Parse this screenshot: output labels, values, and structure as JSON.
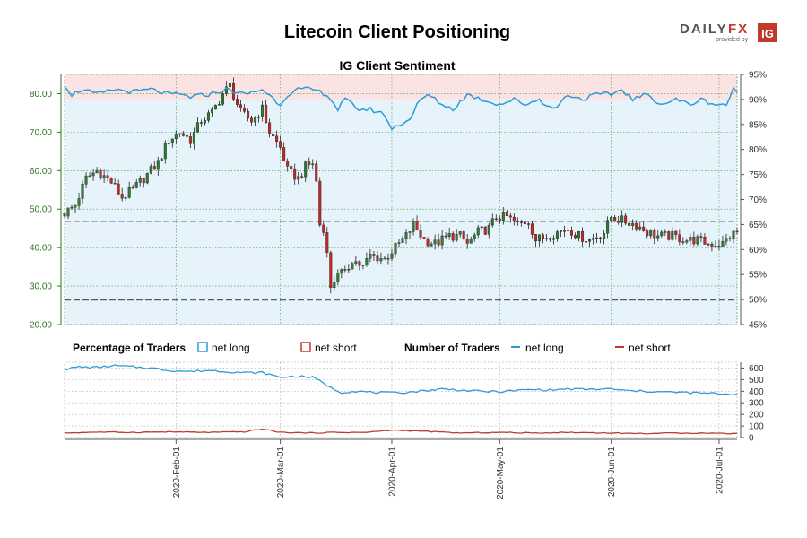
{
  "title": "Litecoin Client Positioning",
  "subtitle": "IG Client Sentiment",
  "logo": {
    "text_left": "DAILY",
    "text_right": "FX",
    "tagline": "provided by",
    "badge": "IG"
  },
  "legend": {
    "pct_title": "Percentage of Traders",
    "pct_long": "net long",
    "pct_short": "net short",
    "num_title": "Number of Traders",
    "num_long": "net long",
    "num_short": "net short"
  },
  "colors": {
    "up_candle": "#2e7d32",
    "down_candle": "#c62828",
    "long_line": "#2e9bd6",
    "short_line": "#c0392b",
    "long_zone": "#e6f3fb",
    "short_zone": "#fbe3e3",
    "price_axis": "#2a7a1e"
  },
  "chart_data": [
    {
      "type": "candlestick",
      "name": "price",
      "y_ticks": [
        "20.00",
        "30.00",
        "40.00",
        "50.00",
        "60.00",
        "70.00",
        "80.00"
      ],
      "ylim": [
        20,
        85
      ],
      "x_ticks": [
        "2020-Feb-01",
        "2020-Mar-01",
        "2020-Apr-01",
        "2020-May-01",
        "2020-Jun-01",
        "2020-Jul-01"
      ],
      "first_date": "2020-01-01",
      "last_date": "2020-07-06",
      "reference_lines": [
        46.7,
        26.4
      ],
      "close_anchors": [
        [
          "2020-01-01",
          49.0
        ],
        [
          "2020-01-04",
          51.0
        ],
        [
          "2020-01-07",
          58.0
        ],
        [
          "2020-01-10",
          60.0
        ],
        [
          "2020-01-14",
          57.0
        ],
        [
          "2020-01-17",
          53.0
        ],
        [
          "2020-01-20",
          55.0
        ],
        [
          "2020-01-24",
          59.0
        ],
        [
          "2020-01-27",
          62.0
        ],
        [
          "2020-01-30",
          68.0
        ],
        [
          "2020-02-02",
          70.0
        ],
        [
          "2020-02-05",
          68.0
        ],
        [
          "2020-02-08",
          73.0
        ],
        [
          "2020-02-11",
          75.0
        ],
        [
          "2020-02-14",
          80.0
        ],
        [
          "2020-02-16",
          82.0
        ],
        [
          "2020-02-19",
          75.0
        ],
        [
          "2020-02-22",
          73.0
        ],
        [
          "2020-02-25",
          76.0
        ],
        [
          "2020-02-27",
          70.0
        ],
        [
          "2020-03-01",
          66.0
        ],
        [
          "2020-03-03",
          60.0
        ],
        [
          "2020-03-06",
          58.0
        ],
        [
          "2020-03-08",
          61.0
        ],
        [
          "2020-03-10",
          62.0
        ],
        [
          "2020-03-11",
          57.0
        ],
        [
          "2020-03-12",
          46.0
        ],
        [
          "2020-03-13",
          44.0
        ],
        [
          "2020-03-14",
          40.0
        ],
        [
          "2020-03-15",
          29.0
        ],
        [
          "2020-03-17",
          34.0
        ],
        [
          "2020-03-19",
          33.0
        ],
        [
          "2020-03-21",
          37.0
        ],
        [
          "2020-03-24",
          35.0
        ],
        [
          "2020-03-26",
          38.0
        ],
        [
          "2020-03-30",
          37.0
        ],
        [
          "2020-04-02",
          40.0
        ],
        [
          "2020-04-05",
          43.0
        ],
        [
          "2020-04-07",
          46.0
        ],
        [
          "2020-04-10",
          42.0
        ],
        [
          "2020-04-13",
          41.0
        ],
        [
          "2020-04-17",
          43.0
        ],
        [
          "2020-04-20",
          43.0
        ],
        [
          "2020-04-22",
          41.0
        ],
        [
          "2020-04-25",
          44.0
        ],
        [
          "2020-04-28",
          45.0
        ],
        [
          "2020-04-30",
          48.0
        ],
        [
          "2020-05-03",
          48.0
        ],
        [
          "2020-05-06",
          46.0
        ],
        [
          "2020-05-09",
          47.0
        ],
        [
          "2020-05-11",
          42.0
        ],
        [
          "2020-05-14",
          43.0
        ],
        [
          "2020-05-17",
          44.0
        ],
        [
          "2020-05-20",
          45.0
        ],
        [
          "2020-05-23",
          43.0
        ],
        [
          "2020-05-26",
          42.0
        ],
        [
          "2020-05-30",
          44.0
        ],
        [
          "2020-06-01",
          48.0
        ],
        [
          "2020-06-04",
          47.0
        ],
        [
          "2020-06-08",
          46.0
        ],
        [
          "2020-06-11",
          44.0
        ],
        [
          "2020-06-14",
          43.0
        ],
        [
          "2020-06-18",
          43.0
        ],
        [
          "2020-06-22",
          42.0
        ],
        [
          "2020-06-25",
          42.0
        ],
        [
          "2020-06-28",
          41.0
        ],
        [
          "2020-07-02",
          41.0
        ],
        [
          "2020-07-04",
          43.0
        ],
        [
          "2020-07-06",
          44.0
        ]
      ],
      "sentiment_right_axis": {
        "ticks": [
          "45%",
          "50%",
          "55%",
          "60%",
          "65%",
          "70%",
          "75%",
          "80%",
          "85%",
          "90%",
          "95%"
        ],
        "ylim": [
          45,
          95
        ],
        "long_pct_anchors": [
          [
            "2020-01-01",
            93
          ],
          [
            "2020-01-03",
            91
          ],
          [
            "2020-01-06",
            92
          ],
          [
            "2020-01-10",
            91
          ],
          [
            "2020-01-15",
            92
          ],
          [
            "2020-01-20",
            91.5
          ],
          [
            "2020-01-25",
            92
          ],
          [
            "2020-01-30",
            91
          ],
          [
            "2020-02-02",
            91
          ],
          [
            "2020-02-05",
            90.5
          ],
          [
            "2020-02-10",
            91
          ],
          [
            "2020-02-15",
            92
          ],
          [
            "2020-02-20",
            91
          ],
          [
            "2020-02-25",
            92
          ],
          [
            "2020-03-01",
            89
          ],
          [
            "2020-03-03",
            91
          ],
          [
            "2020-03-06",
            92
          ],
          [
            "2020-03-10",
            92
          ],
          [
            "2020-03-14",
            91
          ],
          [
            "2020-03-17",
            88
          ],
          [
            "2020-03-19",
            90
          ],
          [
            "2020-03-23",
            88
          ],
          [
            "2020-03-26",
            88
          ],
          [
            "2020-03-30",
            87
          ],
          [
            "2020-04-01",
            84
          ],
          [
            "2020-04-03",
            85
          ],
          [
            "2020-04-06",
            86
          ],
          [
            "2020-04-08",
            89
          ],
          [
            "2020-04-11",
            91
          ],
          [
            "2020-04-15",
            89
          ],
          [
            "2020-04-18",
            88
          ],
          [
            "2020-04-22",
            91
          ],
          [
            "2020-04-26",
            90
          ],
          [
            "2020-05-01",
            89
          ],
          [
            "2020-05-05",
            90
          ],
          [
            "2020-05-08",
            89
          ],
          [
            "2020-05-12",
            90
          ],
          [
            "2020-05-16",
            88
          ],
          [
            "2020-05-20",
            91
          ],
          [
            "2020-05-24",
            90
          ],
          [
            "2020-05-28",
            91
          ],
          [
            "2020-06-01",
            91
          ],
          [
            "2020-06-04",
            92
          ],
          [
            "2020-06-07",
            90
          ],
          [
            "2020-06-11",
            91
          ],
          [
            "2020-06-15",
            89
          ],
          [
            "2020-06-19",
            90
          ],
          [
            "2020-06-23",
            89
          ],
          [
            "2020-06-26",
            90
          ],
          [
            "2020-06-30",
            89
          ],
          [
            "2020-07-03",
            89
          ],
          [
            "2020-07-05",
            92
          ],
          [
            "2020-07-06",
            91
          ]
        ]
      }
    },
    {
      "type": "line",
      "name": "number-of-traders",
      "y_ticks": [
        "0",
        "100",
        "200",
        "300",
        "400",
        "500",
        "600"
      ],
      "ylim": [
        0,
        650
      ],
      "long_anchors": [
        [
          "2020-01-01",
          590
        ],
        [
          "2020-01-05",
          610
        ],
        [
          "2020-01-10",
          605
        ],
        [
          "2020-01-15",
          620
        ],
        [
          "2020-01-20",
          610
        ],
        [
          "2020-01-25",
          600
        ],
        [
          "2020-01-30",
          580
        ],
        [
          "2020-02-05",
          570
        ],
        [
          "2020-02-10",
          580
        ],
        [
          "2020-02-15",
          570
        ],
        [
          "2020-02-20",
          560
        ],
        [
          "2020-02-25",
          560
        ],
        [
          "2020-03-01",
          520
        ],
        [
          "2020-03-05",
          530
        ],
        [
          "2020-03-10",
          520
        ],
        [
          "2020-03-13",
          470
        ],
        [
          "2020-03-15",
          430
        ],
        [
          "2020-03-18",
          390
        ],
        [
          "2020-03-22",
          400
        ],
        [
          "2020-03-27",
          390
        ],
        [
          "2020-04-01",
          385
        ],
        [
          "2020-04-05",
          390
        ],
        [
          "2020-04-10",
          405
        ],
        [
          "2020-04-15",
          420
        ],
        [
          "2020-04-20",
          410
        ],
        [
          "2020-04-25",
          400
        ],
        [
          "2020-05-01",
          395
        ],
        [
          "2020-05-05",
          405
        ],
        [
          "2020-05-10",
          415
        ],
        [
          "2020-05-15",
          410
        ],
        [
          "2020-05-20",
          420
        ],
        [
          "2020-05-25",
          415
        ],
        [
          "2020-06-01",
          420
        ],
        [
          "2020-06-05",
          405
        ],
        [
          "2020-06-10",
          400
        ],
        [
          "2020-06-15",
          395
        ],
        [
          "2020-06-20",
          390
        ],
        [
          "2020-06-25",
          385
        ],
        [
          "2020-06-30",
          380
        ],
        [
          "2020-07-03",
          375
        ],
        [
          "2020-07-06",
          375
        ]
      ],
      "short_anchors": [
        [
          "2020-01-01",
          40
        ],
        [
          "2020-01-10",
          48
        ],
        [
          "2020-01-20",
          45
        ],
        [
          "2020-01-30",
          50
        ],
        [
          "2020-02-10",
          45
        ],
        [
          "2020-02-20",
          50
        ],
        [
          "2020-02-25",
          75
        ],
        [
          "2020-03-01",
          45
        ],
        [
          "2020-03-10",
          40
        ],
        [
          "2020-03-15",
          45
        ],
        [
          "2020-03-25",
          45
        ],
        [
          "2020-04-01",
          65
        ],
        [
          "2020-04-10",
          55
        ],
        [
          "2020-04-20",
          40
        ],
        [
          "2020-05-01",
          45
        ],
        [
          "2020-05-10",
          40
        ],
        [
          "2020-05-20",
          45
        ],
        [
          "2020-06-01",
          40
        ],
        [
          "2020-06-10",
          35
        ],
        [
          "2020-06-20",
          40
        ],
        [
          "2020-06-30",
          38
        ],
        [
          "2020-07-06",
          35
        ]
      ]
    }
  ]
}
